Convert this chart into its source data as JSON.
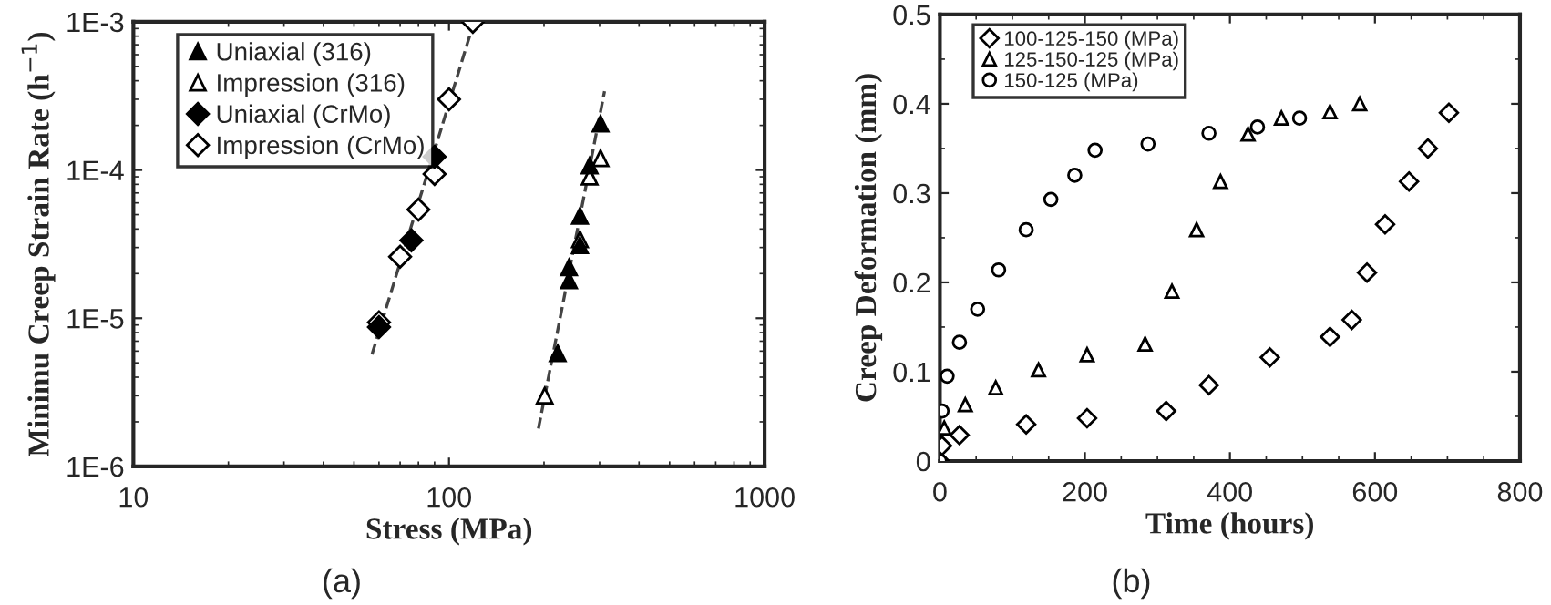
{
  "chart_data": [
    {
      "type": "scatter",
      "xlabel": "Stress (MPa)",
      "ylabel": "Minimu Creep Strain Rate (h$^{−1}$)",
      "log": "xy",
      "xlim": [
        10,
        1000
      ],
      "xticks": [
        10,
        100,
        1000
      ],
      "ylim": [
        1e-06,
        0.001
      ],
      "yticks": [
        {
          "value": 1e-06,
          "label": "1E-6"
        },
        {
          "value": 1e-05,
          "label": "1E-5"
        },
        {
          "value": 0.0001,
          "label": "1E-4"
        },
        {
          "value": 0.001,
          "label": "1E-3"
        }
      ],
      "legend": "top left",
      "grid": false,
      "annotations": [
        "(a)"
      ],
      "series": [
        {
          "name": "Uniaxial (316)",
          "color": "#000000",
          "marker": "triangle",
          "x": [
            221,
            240,
            240,
            260,
            260,
            279,
            302
          ],
          "values": [
            5.8e-06,
            1.8e-05,
            2.2e-05,
            3.1e-05,
            4.9e-05,
            0.000107,
            0.000205
          ]
        },
        {
          "name": "Impression (316)",
          "color": "#ffffff",
          "marker": "triangle",
          "x": [
            201,
            260,
            279,
            302
          ],
          "values": [
            3e-06,
            3.4e-05,
            9e-05,
            0.00012
          ]
        },
        {
          "name": "Uniaxial (CrMo)",
          "color": "#000000",
          "marker": "diamond",
          "x": [
            60,
            76,
            90
          ],
          "values": [
            8.7e-06,
            3.35e-05,
            0.000123
          ]
        },
        {
          "name": "Impression (CrMo)",
          "color": "#ffffff",
          "marker": "diamond",
          "x": [
            60,
            70,
            80,
            90,
            100,
            119
          ],
          "values": [
            9.4e-06,
            2.6e-05,
            5.4e-05,
            9.4e-05,
            0.0003,
            0.001
          ]
        },
        {
          "type": "line",
          "color": "#444444",
          "line_style": "dashed",
          "x": [
            57,
            120
          ],
          "values": [
            5.7e-06,
            0.001
          ]
        },
        {
          "type": "line",
          "color": "#444444",
          "line_style": "dashed",
          "x": [
            192,
            311
          ],
          "values": [
            1.8e-06,
            0.00034
          ]
        }
      ]
    },
    {
      "type": "scatter",
      "xlabel": "Time (hours)",
      "ylabel": "Creep Deformation (mm)",
      "xlim": [
        0,
        800
      ],
      "xticks": [
        0,
        200,
        400,
        600,
        800
      ],
      "ylim": [
        0,
        0.5
      ],
      "yticks": [
        0,
        0.1,
        0.2,
        0.3,
        0.4,
        0.5
      ],
      "legend": "top left",
      "grid": false,
      "annotations": [
        "(b)"
      ],
      "series": [
        {
          "name": "100-125-150 (MPa)",
          "color": "#ffffff",
          "marker": "diamond",
          "x": [
            0,
            3,
            27,
            119,
            203,
            312,
            371,
            455,
            538,
            568,
            589,
            614,
            647,
            673,
            702
          ],
          "values": [
            0,
            0.017,
            0.029,
            0.041,
            0.048,
            0.056,
            0.085,
            0.116,
            0.139,
            0.158,
            0.211,
            0.265,
            0.313,
            0.35,
            0.39
          ]
        },
        {
          "name": "125-150-125 (MPa)",
          "color": "#ffffff",
          "marker": "triangle",
          "x": [
            0,
            6,
            35,
            77,
            136,
            203,
            283,
            320,
            354,
            387,
            425,
            471,
            538,
            579
          ],
          "values": [
            0,
            0.037,
            0.063,
            0.082,
            0.102,
            0.119,
            0.131,
            0.19,
            0.259,
            0.313,
            0.366,
            0.384,
            0.391,
            0.4
          ]
        },
        {
          "name": "150-125 (MPa)",
          "color": "#ffffff",
          "marker": "circle",
          "x": [
            0,
            3,
            10,
            27,
            52,
            81,
            119,
            153,
            186,
            214,
            287,
            371,
            438,
            496
          ],
          "values": [
            0,
            0.056,
            0.095,
            0.133,
            0.17,
            0.214,
            0.259,
            0.293,
            0.32,
            0.348,
            0.355,
            0.367,
            0.374,
            0.384
          ]
        }
      ]
    }
  ]
}
